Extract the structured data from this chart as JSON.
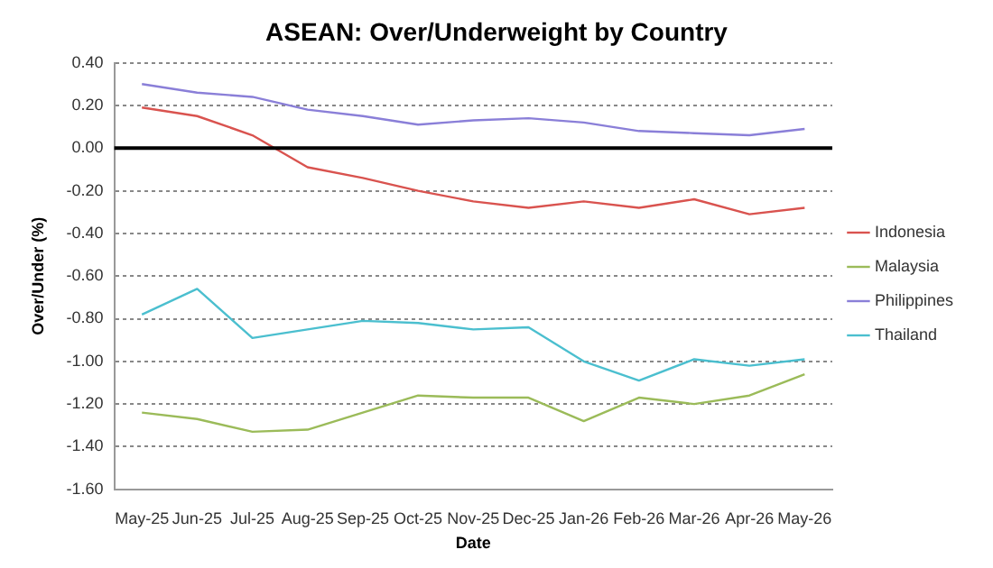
{
  "chart_data": {
    "type": "line",
    "title": "ASEAN: Over/Underweight by Country",
    "xlabel": "Date",
    "ylabel": "Over/Under (%)",
    "categories": [
      "May-25",
      "Jun-25",
      "Jul-25",
      "Aug-25",
      "Sep-25",
      "Oct-25",
      "Nov-25",
      "Dec-25",
      "Jan-26",
      "Feb-26",
      "Mar-26",
      "Apr-26",
      "May-26"
    ],
    "series": [
      {
        "name": "Indonesia",
        "color": "#d9534f",
        "values": [
          0.19,
          0.15,
          0.06,
          -0.09,
          -0.14,
          -0.2,
          -0.25,
          -0.28,
          -0.25,
          -0.28,
          -0.24,
          -0.31,
          -0.28
        ]
      },
      {
        "name": "Malaysia",
        "color": "#9bbb59",
        "values": [
          -1.24,
          -1.27,
          -1.33,
          -1.32,
          -1.24,
          -1.16,
          -1.17,
          -1.17,
          -1.28,
          -1.17,
          -1.2,
          -1.16,
          -1.06
        ]
      },
      {
        "name": "Philippines",
        "color": "#8a7fd8",
        "values": [
          0.3,
          0.26,
          0.24,
          0.18,
          0.15,
          0.11,
          0.13,
          0.14,
          0.12,
          0.08,
          0.07,
          0.06,
          0.09
        ]
      },
      {
        "name": "Thailand",
        "color": "#4bbfcf",
        "values": [
          -0.78,
          -0.66,
          -0.89,
          -0.85,
          -0.81,
          -0.82,
          -0.85,
          -0.84,
          -1.0,
          -1.09,
          -0.99,
          -1.02,
          -0.99
        ]
      }
    ],
    "ylim": [
      -1.6,
      0.4
    ],
    "yticks": [
      {
        "value": -1.6,
        "label": "-1.60"
      },
      {
        "value": -1.4,
        "label": "-1.40"
      },
      {
        "value": -1.2,
        "label": "-1.20"
      },
      {
        "value": -1.0,
        "label": "-1.00"
      },
      {
        "value": -0.8,
        "label": "-0.80"
      },
      {
        "value": -0.6,
        "label": "-0.60"
      },
      {
        "value": -0.4,
        "label": "-0.40"
      },
      {
        "value": -0.2,
        "label": "-0.20"
      },
      {
        "value": 0,
        "label": "0.00"
      },
      {
        "value": 0.2,
        "label": "0.20"
      },
      {
        "value": 0.4,
        "label": "0.40"
      }
    ],
    "ref_lines": [
      {
        "axis": "y",
        "value": 0,
        "color": "#000000"
      }
    ],
    "grid": "y",
    "legend": "right",
    "marker": "none",
    "line_style": "solid"
  }
}
